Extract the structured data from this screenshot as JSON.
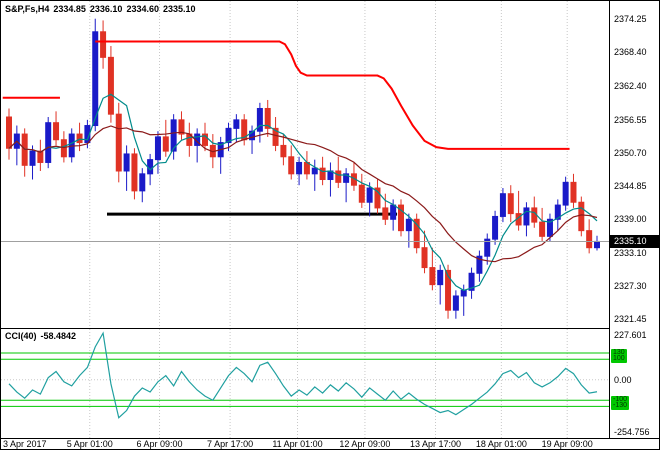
{
  "header": {
    "symbol": "S&P,Fs,H4",
    "open": "2334.85",
    "high": "2336.10",
    "low": "2334.60",
    "close": "2335.10"
  },
  "indicator": {
    "name": "CCI(40)",
    "value": "-58.4842"
  },
  "colors": {
    "bg": "#ffffff",
    "border": "#000000",
    "up": "#1a1ac8",
    "down": "#e03224",
    "stop_line": "#ff0000",
    "ma_fast": "#008b8b",
    "ma_slow": "#8b1a1a",
    "cci_line": "#20a0a0",
    "level_line": "#00c800",
    "grid": "#c8c8c8",
    "price_line": "#a0a0a0",
    "badge_bg": "#000000",
    "badge_text": "#ffffff"
  },
  "chart_data": [
    {
      "type": "candlestick",
      "title": "S&P,Fs,H4",
      "timeframe": "H4",
      "current_price": 2335.1,
      "ylim": [
        2320.7,
        2375.6
      ],
      "price_ticks": [
        2374.25,
        2368.4,
        2362.4,
        2356.55,
        2350.7,
        2344.85,
        2339.0,
        2333.1,
        2327.3,
        2321.45
      ],
      "x_labels": [
        {
          "i": 0,
          "label": "3 Apr 2017"
        },
        {
          "i": 10.3,
          "label": "5 Apr 01:00"
        },
        {
          "i": 19.2,
          "label": "6 Apr 09:00"
        },
        {
          "i": 28.2,
          "label": "7 Apr 17:00"
        },
        {
          "i": 36.8,
          "label": "11 Apr 01:00"
        },
        {
          "i": 45.4,
          "label": "12 Apr 09:00"
        },
        {
          "i": 54.4,
          "label": "13 Apr 17:00"
        },
        {
          "i": 62.8,
          "label": "18 Apr 01:00"
        },
        {
          "i": 71.2,
          "label": "19 Apr 09:00"
        }
      ],
      "candles": [
        [
          2357.0,
          2358.5,
          2349.5,
          2351.5
        ],
        [
          2351.5,
          2355.5,
          2348.5,
          2354.0
        ],
        [
          2354.0,
          2355.0,
          2346.5,
          2348.5
        ],
        [
          2348.5,
          2352.0,
          2346.0,
          2351.0
        ],
        [
          2351.0,
          2353.0,
          2347.5,
          2349.0
        ],
        [
          2349.0,
          2357.0,
          2348.0,
          2356.0
        ],
        [
          2356.0,
          2358.0,
          2352.0,
          2353.0
        ],
        [
          2353.0,
          2354.5,
          2349.0,
          2350.0
        ],
        [
          2350.0,
          2355.0,
          2349.0,
          2354.0
        ],
        [
          2354.0,
          2356.0,
          2351.0,
          2352.5
        ],
        [
          2352.5,
          2356.5,
          2351.5,
          2355.5
        ],
        [
          2355.5,
          2374.3,
          2354.5,
          2372.0
        ],
        [
          2372.0,
          2374.0,
          2365.5,
          2367.5
        ],
        [
          2367.5,
          2369.5,
          2356.0,
          2357.5
        ],
        [
          2357.5,
          2359.5,
          2345.5,
          2347.5
        ],
        [
          2347.5,
          2352.0,
          2344.0,
          2350.5
        ],
        [
          2350.5,
          2351.5,
          2342.5,
          2344.0
        ],
        [
          2344.0,
          2348.0,
          2342.0,
          2347.0
        ],
        [
          2347.0,
          2350.5,
          2345.0,
          2349.5
        ],
        [
          2349.5,
          2354.5,
          2347.0,
          2353.5
        ],
        [
          2353.5,
          2356.5,
          2350.0,
          2351.0
        ],
        [
          2351.0,
          2357.5,
          2349.5,
          2356.5
        ],
        [
          2356.5,
          2358.0,
          2353.0,
          2354.0
        ],
        [
          2354.0,
          2356.0,
          2350.0,
          2352.0
        ],
        [
          2352.0,
          2355.0,
          2349.0,
          2354.0
        ],
        [
          2354.0,
          2356.0,
          2351.0,
          2352.0
        ],
        [
          2352.0,
          2354.0,
          2348.0,
          2350.0
        ],
        [
          2350.0,
          2353.5,
          2347.0,
          2352.5
        ],
        [
          2352.5,
          2356.0,
          2351.0,
          2355.0
        ],
        [
          2355.0,
          2357.5,
          2352.5,
          2356.5
        ],
        [
          2356.5,
          2357.5,
          2352.0,
          2353.0
        ],
        [
          2353.0,
          2355.5,
          2350.5,
          2354.5
        ],
        [
          2354.5,
          2359.5,
          2352.5,
          2358.5
        ],
        [
          2358.5,
          2360.0,
          2353.5,
          2355.0
        ],
        [
          2355.0,
          2357.0,
          2351.0,
          2352.0
        ],
        [
          2352.0,
          2354.0,
          2348.5,
          2350.0
        ],
        [
          2350.0,
          2352.0,
          2346.0,
          2347.0
        ],
        [
          2347.0,
          2350.0,
          2345.0,
          2349.0
        ],
        [
          2349.0,
          2351.0,
          2346.0,
          2347.0
        ],
        [
          2347.0,
          2349.5,
          2344.0,
          2348.0
        ],
        [
          2348.0,
          2350.0,
          2345.0,
          2346.0
        ],
        [
          2346.0,
          2349.0,
          2343.0,
          2347.5
        ],
        [
          2347.5,
          2350.0,
          2344.5,
          2345.5
        ],
        [
          2345.5,
          2348.0,
          2342.0,
          2347.0
        ],
        [
          2347.0,
          2349.0,
          2344.0,
          2345.0
        ],
        [
          2345.0,
          2347.0,
          2341.0,
          2342.0
        ],
        [
          2342.0,
          2345.5,
          2339.5,
          2344.5
        ],
        [
          2344.5,
          2346.0,
          2340.0,
          2341.0
        ],
        [
          2341.0,
          2343.5,
          2338.0,
          2339.0
        ],
        [
          2339.0,
          2342.5,
          2337.0,
          2341.5
        ],
        [
          2341.5,
          2342.5,
          2336.0,
          2337.0
        ],
        [
          2337.0,
          2340.0,
          2334.0,
          2339.0
        ],
        [
          2339.0,
          2340.0,
          2333.0,
          2334.0
        ],
        [
          2334.0,
          2337.0,
          2329.5,
          2330.5
        ],
        [
          2330.5,
          2334.0,
          2326.5,
          2327.5
        ],
        [
          2327.5,
          2331.0,
          2324.0,
          2330.0
        ],
        [
          2330.0,
          2331.0,
          2321.5,
          2323.0
        ],
        [
          2323.0,
          2326.5,
          2321.5,
          2325.5
        ],
        [
          2325.5,
          2327.5,
          2322.0,
          2326.5
        ],
        [
          2326.5,
          2330.5,
          2325.0,
          2329.5
        ],
        [
          2329.5,
          2333.5,
          2328.0,
          2332.5
        ],
        [
          2332.5,
          2336.5,
          2331.0,
          2335.5
        ],
        [
          2335.5,
          2340.5,
          2334.5,
          2339.5
        ],
        [
          2339.5,
          2344.5,
          2338.5,
          2343.5
        ],
        [
          2343.5,
          2345.0,
          2338.5,
          2340.0
        ],
        [
          2340.0,
          2344.0,
          2337.0,
          2338.0
        ],
        [
          2338.0,
          2342.0,
          2336.0,
          2341.0
        ],
        [
          2341.0,
          2343.0,
          2337.5,
          2338.5
        ],
        [
          2338.5,
          2341.0,
          2335.0,
          2336.0
        ],
        [
          2336.0,
          2340.0,
          2335.0,
          2339.0
        ],
        [
          2339.0,
          2342.5,
          2337.0,
          2341.5
        ],
        [
          2341.5,
          2346.5,
          2340.5,
          2345.5
        ],
        [
          2345.5,
          2347.0,
          2341.0,
          2342.0
        ],
        [
          2342.0,
          2343.0,
          2336.0,
          2337.0
        ],
        [
          2337.0,
          2339.0,
          2333.0,
          2334.0
        ],
        [
          2334.0,
          2336.1,
          2333.5,
          2335.1
        ]
      ],
      "overlays": {
        "stop_line_segments": [
          [
            [
              -0.8,
              2360.4
            ],
            [
              6.5,
              2360.4
            ]
          ],
          [
            [
              11,
              2370.3
            ],
            [
              34.5,
              2370.3
            ],
            [
              35.2,
              2369.8
            ],
            [
              36,
              2368.0
            ],
            [
              36.6,
              2366.0
            ],
            [
              37.2,
              2364.8
            ],
            [
              38,
              2364.3
            ],
            [
              47,
              2364.3
            ],
            [
              47.8,
              2363.8
            ],
            [
              48.8,
              2362.0
            ],
            [
              50,
              2359.0
            ],
            [
              51.5,
              2355.5
            ],
            [
              53,
              2352.8
            ],
            [
              54.5,
              2351.7
            ],
            [
              56,
              2351.4
            ],
            [
              71.5,
              2351.4
            ]
          ]
        ],
        "support_line": {
          "points": [
            [
              12.5,
              2339.9
            ],
            [
              49.5,
              2339.9
            ]
          ],
          "width": 3,
          "color": "#000000"
        },
        "ma_fast_period": 5,
        "ma_slow_period": 13
      }
    },
    {
      "type": "line",
      "name": "CCI(40)",
      "current_value": -58.4842,
      "ylim": [
        -254.756,
        227.601
      ],
      "ticks": [
        {
          "v": 227.601,
          "label": "227.601"
        },
        {
          "v": 0,
          "label": "0.00"
        },
        {
          "v": -254.756,
          "label": "-254.756"
        }
      ],
      "levels": [
        130,
        100,
        -100,
        -130
      ],
      "values": [
        -20,
        -60,
        -90,
        -50,
        -70,
        10,
        40,
        -10,
        -30,
        20,
        60,
        160,
        227,
        -20,
        -185,
        -150,
        -80,
        -40,
        -60,
        -10,
        20,
        -30,
        40,
        -10,
        -50,
        -80,
        -100,
        -40,
        20,
        60,
        30,
        -10,
        70,
        85,
        30,
        -30,
        -80,
        -50,
        -75,
        -35,
        -65,
        -25,
        -55,
        -15,
        -45,
        -85,
        -40,
        -70,
        -100,
        -55,
        -95,
        -65,
        -95,
        -120,
        -140,
        -160,
        -150,
        -170,
        -145,
        -120,
        -90,
        -60,
        -20,
        30,
        45,
        10,
        35,
        -15,
        -35,
        -15,
        15,
        55,
        30,
        -25,
        -65,
        -58.4842
      ]
    }
  ]
}
